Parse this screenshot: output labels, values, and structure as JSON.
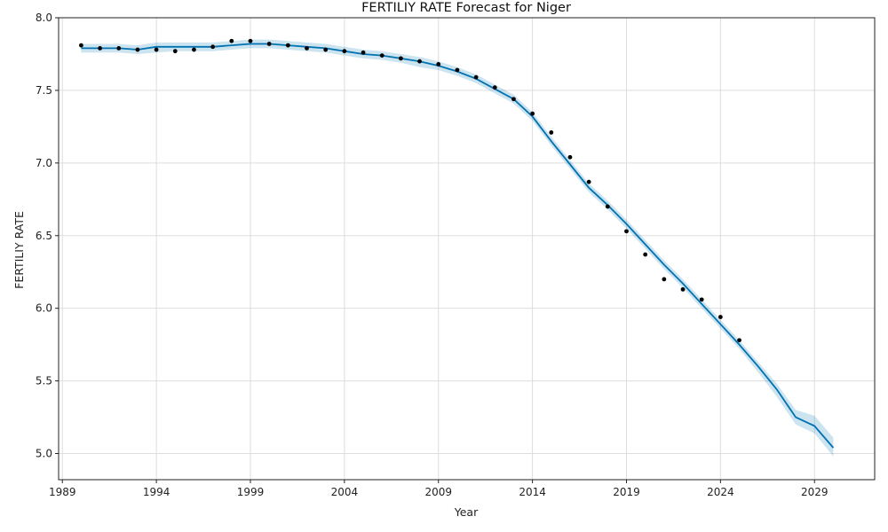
{
  "chart_data": {
    "type": "line",
    "title": "FERTILIY RATE Forecast for Niger",
    "xlabel": "Year",
    "ylabel": "FERTILIY RATE",
    "xlim": [
      1988.8,
      2032.2
    ],
    "ylim": [
      4.82,
      8.0
    ],
    "x_ticks": [
      1989,
      1994,
      1999,
      2004,
      2009,
      2014,
      2019,
      2024,
      2029
    ],
    "y_ticks": [
      5.0,
      5.5,
      6.0,
      6.5,
      7.0,
      7.5,
      8.0
    ],
    "y_tick_labels": [
      "5.0",
      "5.5",
      "6.0",
      "6.5",
      "7.0",
      "7.5",
      "8.0"
    ],
    "grid": true,
    "colors": {
      "forecast": "#0072B2",
      "interval": "#0072B2",
      "actual": "#000000",
      "grid": "#dddddd"
    },
    "series": [
      {
        "kind": "actual",
        "x": [
          1990,
          1991,
          1992,
          1993,
          1994,
          1995,
          1996,
          1997,
          1998,
          1999,
          2000,
          2001,
          2002,
          2003,
          2004,
          2005,
          2006,
          2007,
          2008,
          2009,
          2010,
          2011,
          2012,
          2013,
          2014,
          2015,
          2016,
          2017,
          2018,
          2019,
          2020,
          2021,
          2022,
          2023,
          2024,
          2025
        ],
        "values": [
          7.81,
          7.79,
          7.79,
          7.78,
          7.78,
          7.77,
          7.78,
          7.8,
          7.84,
          7.84,
          7.82,
          7.81,
          7.79,
          7.78,
          7.77,
          7.76,
          7.74,
          7.72,
          7.7,
          7.68,
          7.64,
          7.59,
          7.52,
          7.44,
          7.34,
          7.21,
          7.04,
          6.87,
          6.7,
          6.53,
          6.37,
          6.2,
          6.13,
          6.06,
          5.94,
          5.78
        ]
      },
      {
        "kind": "forecast",
        "x": [
          1990,
          1991,
          1992,
          1993,
          1994,
          1995,
          1996,
          1997,
          1998,
          1999,
          2000,
          2001,
          2002,
          2003,
          2004,
          2005,
          2006,
          2007,
          2008,
          2009,
          2010,
          2011,
          2012,
          2013,
          2014,
          2015,
          2016,
          2017,
          2018,
          2019,
          2020,
          2021,
          2022,
          2023,
          2024,
          2025,
          2026,
          2027,
          2028,
          2029,
          2030
        ],
        "values": [
          7.79,
          7.79,
          7.79,
          7.78,
          7.8,
          7.8,
          7.8,
          7.8,
          7.81,
          7.82,
          7.82,
          7.81,
          7.8,
          7.79,
          7.77,
          7.75,
          7.74,
          7.72,
          7.7,
          7.67,
          7.63,
          7.58,
          7.51,
          7.44,
          7.32,
          7.15,
          6.99,
          6.83,
          6.71,
          6.58,
          6.44,
          6.3,
          6.17,
          6.03,
          5.89,
          5.75,
          5.6,
          5.44,
          5.25,
          5.19,
          5.04
        ],
        "lower": [
          7.76,
          7.76,
          7.76,
          7.75,
          7.76,
          7.77,
          7.77,
          7.77,
          7.78,
          7.79,
          7.79,
          7.78,
          7.77,
          7.76,
          7.74,
          7.72,
          7.71,
          7.69,
          7.66,
          7.64,
          7.6,
          7.55,
          7.48,
          7.41,
          7.29,
          7.12,
          6.96,
          6.8,
          6.68,
          6.55,
          6.41,
          6.27,
          6.14,
          6.0,
          5.86,
          5.72,
          5.56,
          5.39,
          5.2,
          5.14,
          4.98
        ],
        "upper": [
          7.82,
          7.82,
          7.82,
          7.81,
          7.83,
          7.83,
          7.83,
          7.83,
          7.84,
          7.85,
          7.85,
          7.84,
          7.83,
          7.82,
          7.8,
          7.78,
          7.77,
          7.75,
          7.73,
          7.7,
          7.66,
          7.61,
          7.54,
          7.47,
          7.35,
          7.18,
          7.02,
          6.86,
          6.74,
          6.61,
          6.47,
          6.33,
          6.2,
          6.06,
          5.92,
          5.78,
          5.63,
          5.48,
          5.3,
          5.26,
          5.11
        ]
      }
    ]
  }
}
